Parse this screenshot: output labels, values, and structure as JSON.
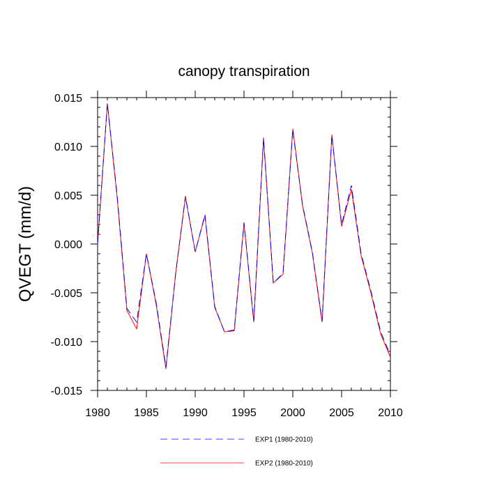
{
  "chart_data": {
    "type": "line",
    "title": "canopy transpiration",
    "xlabel": "",
    "ylabel": "QVEGT  (mm/d)",
    "xlim": [
      1980,
      2010
    ],
    "ylim": [
      -0.015,
      0.015
    ],
    "x_ticks": [
      1980,
      1985,
      1990,
      1995,
      2000,
      2005,
      2010
    ],
    "y_ticks": [
      0.015,
      0.01,
      0.005,
      0.0,
      -0.005,
      -0.01,
      -0.015
    ],
    "x_tick_labels": [
      "1980",
      "1985",
      "1990",
      "1995",
      "2000",
      "2005",
      "2010"
    ],
    "y_tick_labels": [
      "0.015",
      "0.010",
      "0.005",
      "0.000",
      "-0.005",
      "-0.010",
      "-0.015"
    ],
    "grid": false,
    "legend_position": "bottom",
    "x": [
      1980,
      1981,
      1982,
      1983,
      1984,
      1985,
      1986,
      1987,
      1988,
      1989,
      1990,
      1991,
      1992,
      1993,
      1994,
      1995,
      1996,
      1997,
      1998,
      1999,
      2000,
      2001,
      2002,
      2003,
      2004,
      2005,
      2006,
      2007,
      2008,
      2009,
      2010
    ],
    "series": [
      {
        "name": "EXP1 (1980-2010)",
        "color": "#0000ff",
        "style": "dashed",
        "values": [
          0.0,
          0.0144,
          0.005,
          -0.0066,
          -0.008,
          -0.001,
          -0.006,
          -0.0126,
          -0.003,
          0.0049,
          -0.0008,
          0.003,
          -0.0064,
          -0.009,
          -0.0088,
          0.0022,
          -0.0079,
          0.0109,
          -0.004,
          -0.003,
          0.0117,
          0.004,
          -0.0008,
          -0.0079,
          0.0111,
          0.002,
          0.006,
          -0.001,
          -0.0048,
          -0.009,
          -0.0114
        ]
      },
      {
        "name": "EXP2 (1980-2010)",
        "color": "#ff0000",
        "style": "solid",
        "values": [
          0.0,
          0.0144,
          0.0048,
          -0.0068,
          -0.0087,
          -0.001,
          -0.0062,
          -0.0128,
          -0.003,
          0.0048,
          -0.0008,
          0.0029,
          -0.0065,
          -0.009,
          -0.0089,
          0.0021,
          -0.008,
          0.0108,
          -0.004,
          -0.0031,
          0.0118,
          0.0039,
          -0.0009,
          -0.008,
          0.0112,
          0.0018,
          0.0056,
          -0.0012,
          -0.005,
          -0.0092,
          -0.0116
        ]
      }
    ]
  }
}
